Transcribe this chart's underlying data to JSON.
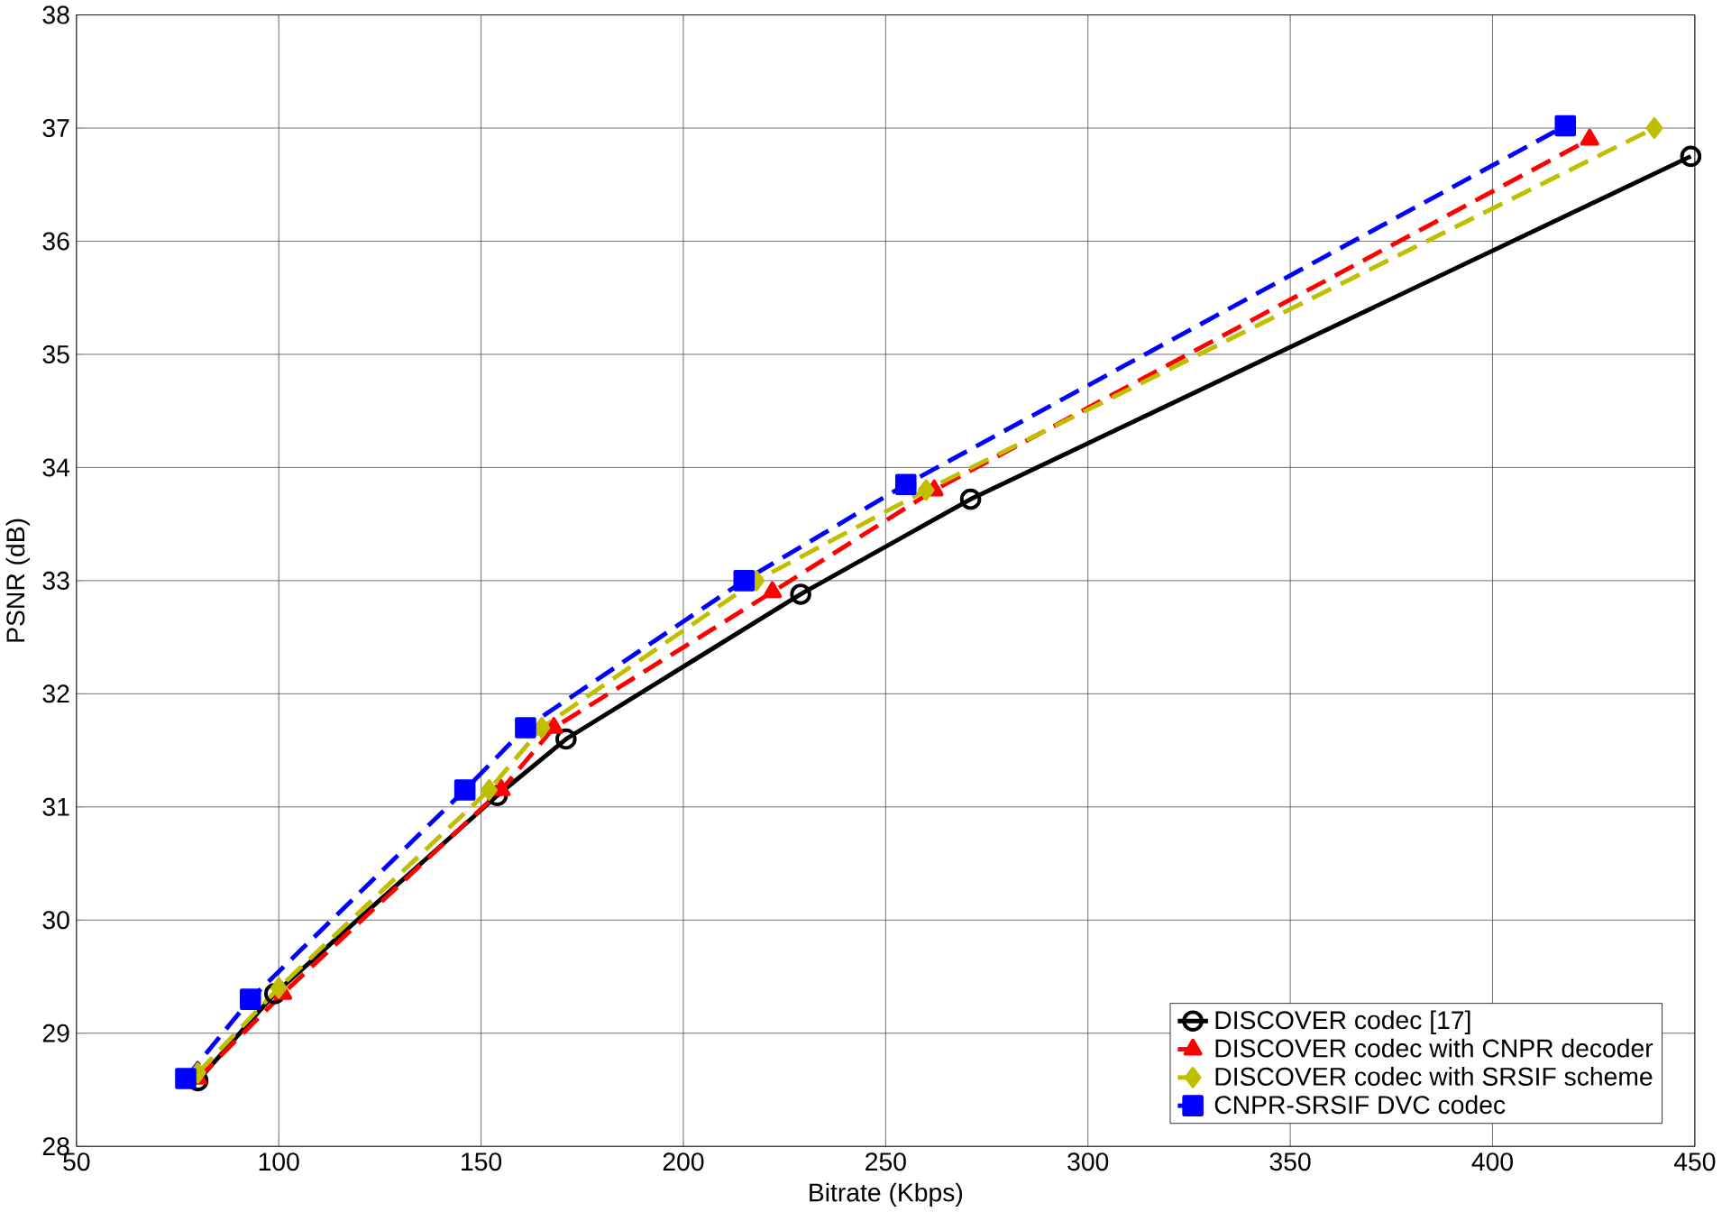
{
  "chart_data": {
    "type": "line",
    "xlabel": "Bitrate (Kbps)",
    "ylabel": "PSNR (dB)",
    "xlim": [
      50,
      450
    ],
    "ylim": [
      28,
      38
    ],
    "xticks": [
      50,
      100,
      150,
      200,
      250,
      300,
      350,
      400,
      450
    ],
    "yticks": [
      28,
      29,
      30,
      31,
      32,
      33,
      34,
      35,
      36,
      37,
      38
    ],
    "grid": true,
    "legend": "bottom right",
    "series": [
      {
        "name": "DISCOVER codec [17]",
        "color": "#000000",
        "marker": "circle",
        "line_style": "solid",
        "x": [
          80,
          99,
          154,
          171,
          229,
          271,
          449
        ],
        "values": [
          28.58,
          29.35,
          31.1,
          31.6,
          32.88,
          33.72,
          36.75
        ]
      },
      {
        "name": "DISCOVER codec with CNPR decoder",
        "color": "#ff0000",
        "marker": "triangle",
        "line_style": "dashed",
        "x": [
          80,
          101,
          155,
          168,
          222,
          262,
          424
        ],
        "values": [
          28.6,
          29.35,
          31.15,
          31.7,
          32.9,
          33.8,
          36.9
        ]
      },
      {
        "name": "DISCOVER codec with  SRSIF scheme",
        "color": "#bfbf00",
        "marker": "diamond",
        "line_style": "dashed",
        "x": [
          80,
          100,
          152,
          165,
          218,
          260,
          440
        ],
        "values": [
          28.65,
          29.4,
          31.15,
          31.7,
          33.0,
          33.8,
          37.0
        ]
      },
      {
        "name": "CNPR-SRSIF DVC codec",
        "color": "#0000ff",
        "marker": "square",
        "line_style": "dashed",
        "x": [
          77,
          93,
          146,
          161,
          215,
          255,
          418
        ],
        "values": [
          28.6,
          29.3,
          31.15,
          31.7,
          33.0,
          33.85,
          37.02
        ]
      }
    ]
  }
}
